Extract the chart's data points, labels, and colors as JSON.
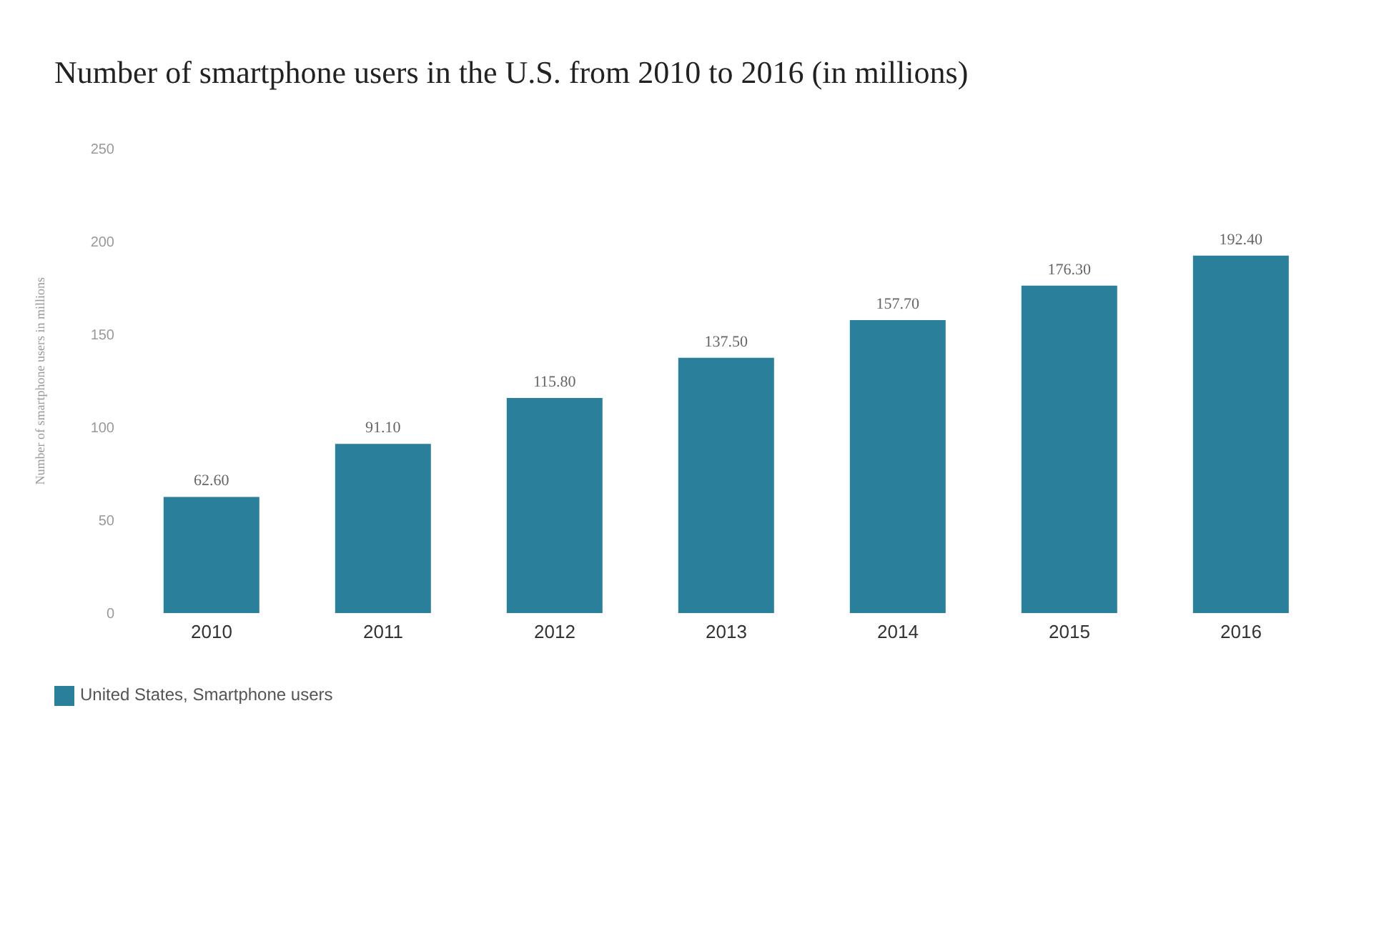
{
  "chart_data": {
    "type": "bar",
    "title": "Number of smartphone users in the U.S. from 2010 to 2016 (in millions)",
    "ylabel": "Number of smartphone users in millions",
    "categories": [
      "2010",
      "2011",
      "2012",
      "2013",
      "2014",
      "2015",
      "2016"
    ],
    "series": [
      {
        "name": "United States, Smartphone users",
        "color": "#2a7f9a",
        "values": [
          62.6,
          91.1,
          115.8,
          137.5,
          157.7,
          176.3,
          192.4
        ],
        "value_labels": [
          "62.60",
          "91.10",
          "115.80",
          "137.50",
          "157.70",
          "176.30",
          "192.40"
        ]
      }
    ],
    "ylim": [
      0,
      250
    ],
    "yticks": [
      0,
      50,
      100,
      150,
      200,
      250
    ],
    "grid": false,
    "legend": "bottom left"
  }
}
